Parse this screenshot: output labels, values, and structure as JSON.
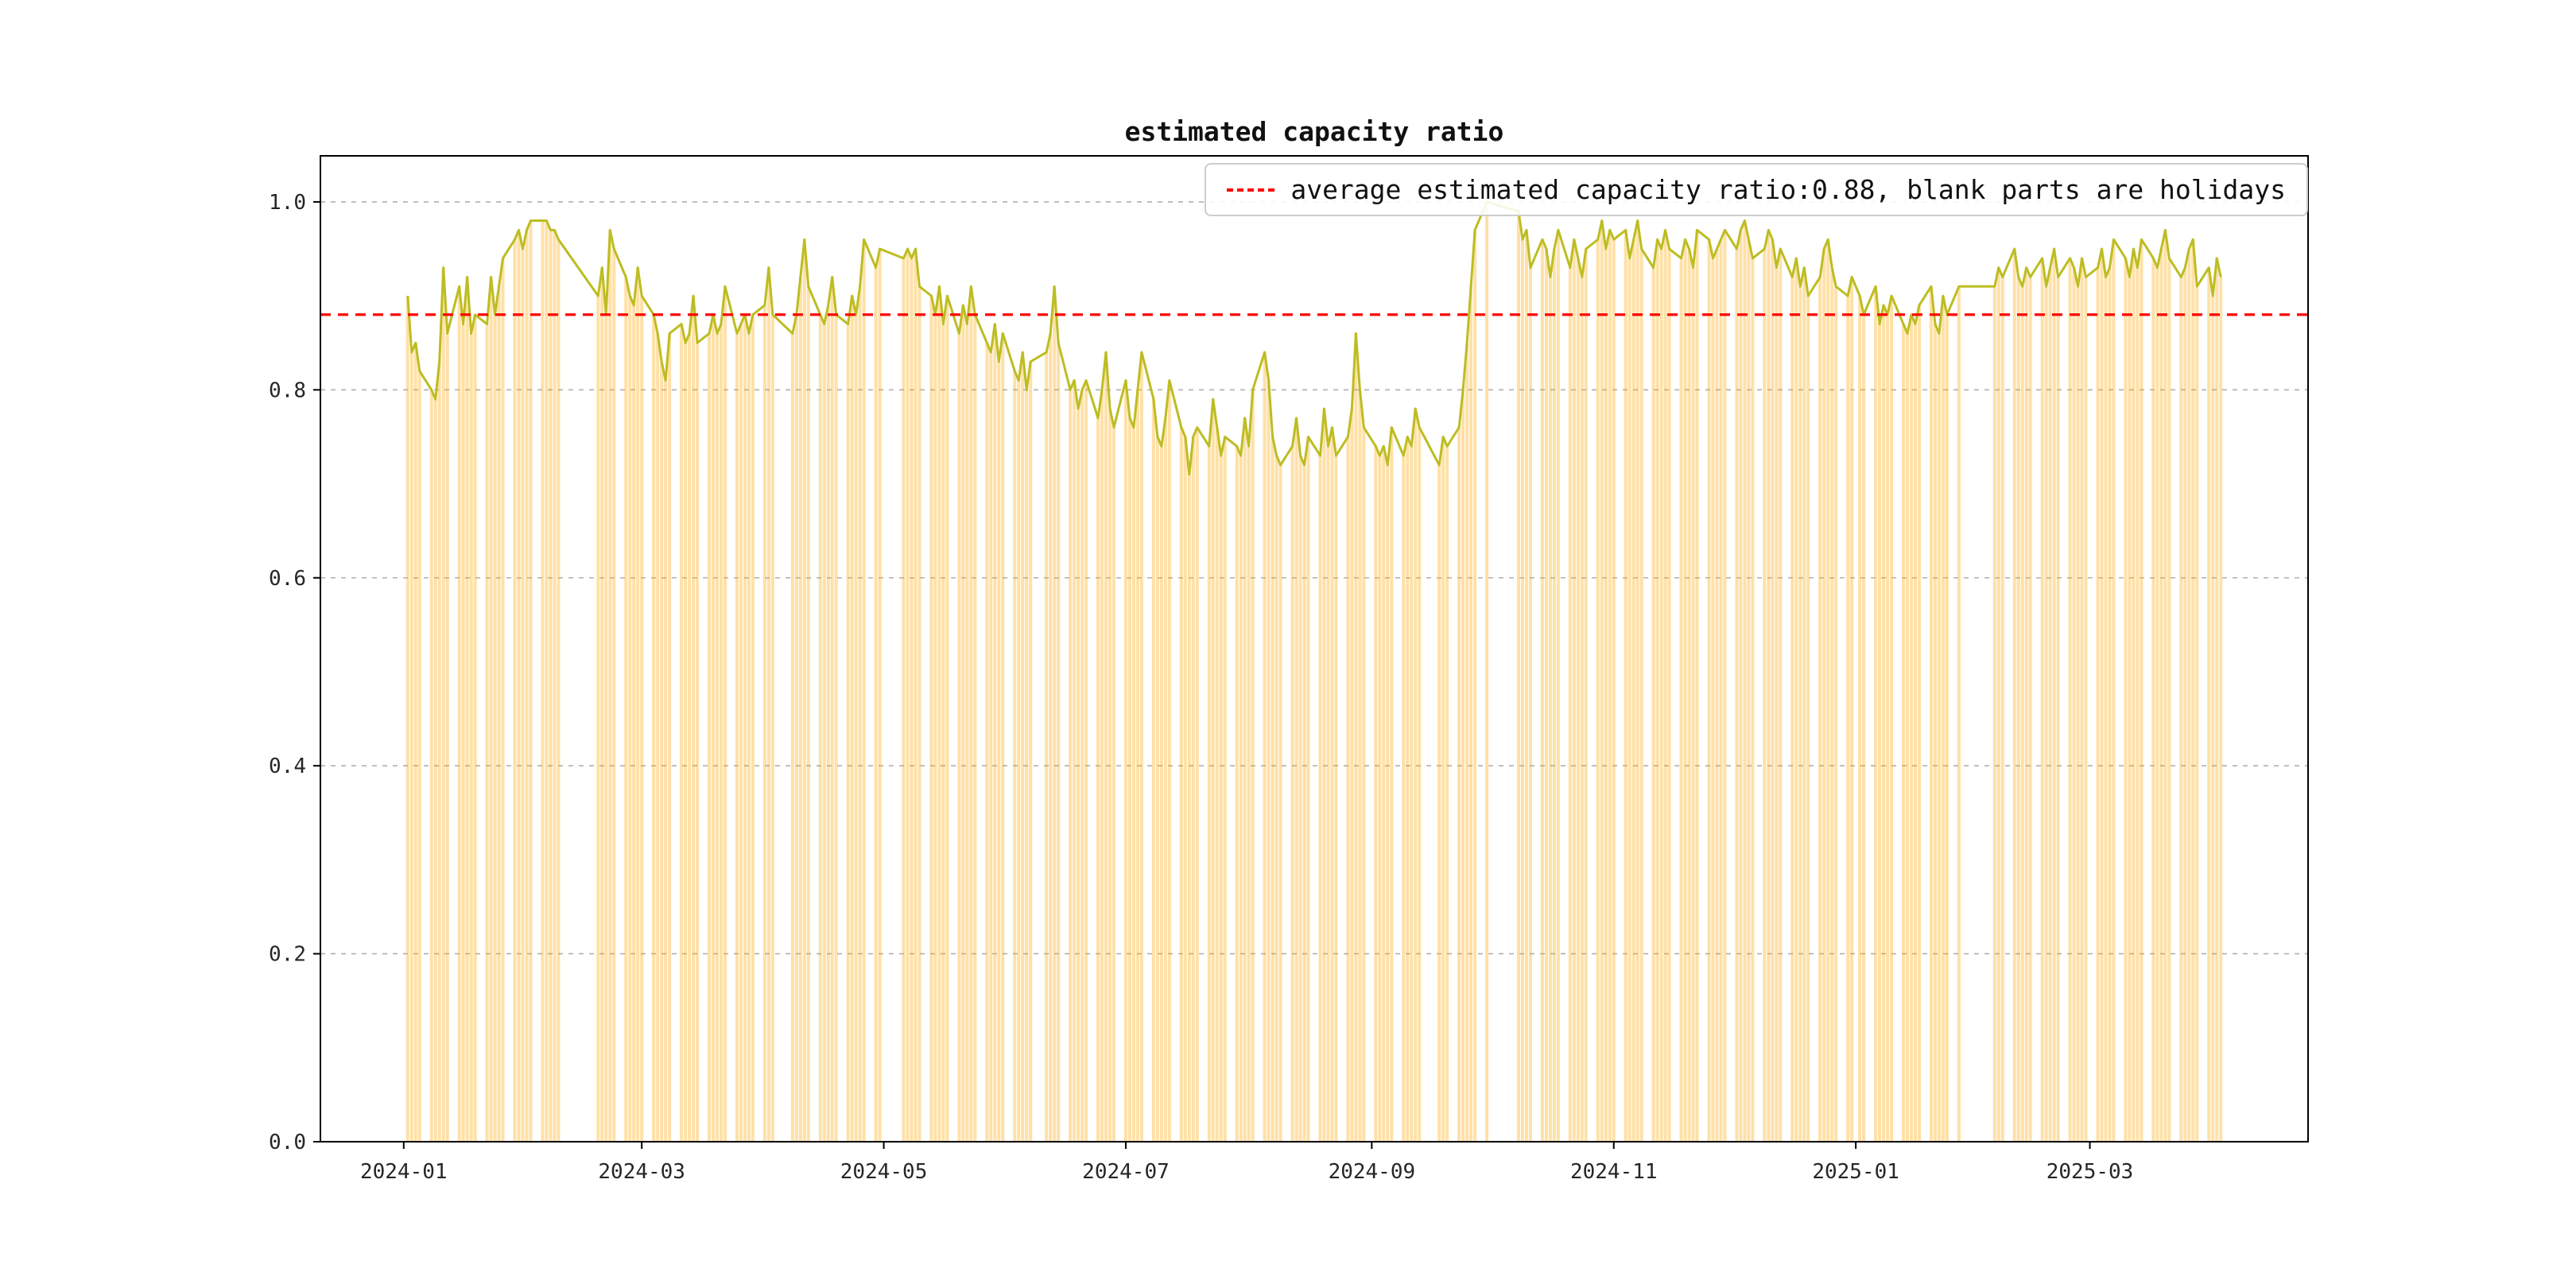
{
  "figure": {
    "title": "estimated capacity ratio"
  },
  "chart_data": {
    "type": "line",
    "title": "estimated capacity ratio",
    "legend_label": "average estimated capacity ratio:0.88, blank parts are holidays",
    "average": 0.88,
    "x_start_date": "2024-01-01",
    "x_axis_note": "day offsets are days since 2024-01-01; blank gaps are weekends/holidays",
    "xlim_days": [
      -21,
      480
    ],
    "ylim": [
      0,
      1.049
    ],
    "yticks": [
      0.0,
      0.2,
      0.4,
      0.6,
      0.8,
      1.0
    ],
    "xticks": [
      {
        "label": "2024-01",
        "day": 0
      },
      {
        "label": "2024-03",
        "day": 60
      },
      {
        "label": "2024-05",
        "day": 121
      },
      {
        "label": "2024-07",
        "day": 182
      },
      {
        "label": "2024-09",
        "day": 244
      },
      {
        "label": "2024-11",
        "day": 305
      },
      {
        "label": "2025-01",
        "day": 366
      },
      {
        "label": "2025-03",
        "day": 425
      }
    ],
    "colors": {
      "line": "#bcbd22",
      "bar": "rgba(255,166,0,0.35)",
      "average": "#ff0000",
      "grid": "#b0b0b0",
      "spine": "#000000"
    },
    "series_runs": [
      {
        "s": 1,
        "v": [
          0.9,
          0.84,
          0.85,
          0.82
        ]
      },
      {
        "s": 7,
        "v": [
          0.8,
          0.79,
          0.83,
          0.93,
          0.86
        ]
      },
      {
        "s": 14,
        "v": [
          0.91,
          0.87,
          0.92,
          0.86,
          0.88
        ]
      },
      {
        "s": 21,
        "v": [
          0.87,
          0.92,
          0.88,
          0.91,
          0.94
        ]
      },
      {
        "s": 28,
        "v": [
          0.96,
          0.97,
          0.95,
          0.97,
          0.98
        ]
      },
      {
        "s": 35,
        "v": [
          0.98,
          0.98,
          0.97,
          0.97,
          0.96
        ]
      },
      {
        "s": 49,
        "v": [
          0.9,
          0.93,
          0.88,
          0.97,
          0.95
        ]
      },
      {
        "s": 56,
        "v": [
          0.92,
          0.9,
          0.89,
          0.93,
          0.9
        ]
      },
      {
        "s": 63,
        "v": [
          0.88,
          0.86,
          0.83,
          0.81,
          0.86
        ]
      },
      {
        "s": 70,
        "v": [
          0.87,
          0.85,
          0.86,
          0.9,
          0.85
        ]
      },
      {
        "s": 77,
        "v": [
          0.86,
          0.88,
          0.86,
          0.87,
          0.91
        ]
      },
      {
        "s": 84,
        "v": [
          0.86,
          0.87,
          0.88,
          0.86,
          0.88
        ]
      },
      {
        "s": 91,
        "v": [
          0.89,
          0.93,
          0.88
        ]
      },
      {
        "s": 98,
        "v": [
          0.86,
          0.88,
          0.92,
          0.96,
          0.91
        ]
      },
      {
        "s": 105,
        "v": [
          0.88,
          0.87,
          0.89,
          0.92,
          0.88
        ]
      },
      {
        "s": 112,
        "v": [
          0.87,
          0.9,
          0.88,
          0.91,
          0.96
        ]
      },
      {
        "s": 119,
        "v": [
          0.93,
          0.95
        ]
      },
      {
        "s": 126,
        "v": [
          0.94,
          0.95,
          0.94,
          0.95,
          0.91
        ]
      },
      {
        "s": 133,
        "v": [
          0.9,
          0.88,
          0.91,
          0.87,
          0.9
        ]
      },
      {
        "s": 140,
        "v": [
          0.86,
          0.89,
          0.87,
          0.91,
          0.88
        ]
      },
      {
        "s": 147,
        "v": [
          0.85,
          0.84,
          0.87,
          0.83,
          0.86
        ]
      },
      {
        "s": 154,
        "v": [
          0.82,
          0.81,
          0.84,
          0.8,
          0.83
        ]
      },
      {
        "s": 162,
        "v": [
          0.84,
          0.86,
          0.91,
          0.85
        ]
      },
      {
        "s": 168,
        "v": [
          0.8,
          0.81,
          0.78,
          0.8,
          0.81
        ]
      },
      {
        "s": 175,
        "v": [
          0.77,
          0.8,
          0.84,
          0.78,
          0.76
        ]
      },
      {
        "s": 182,
        "v": [
          0.81,
          0.77,
          0.76,
          0.8,
          0.84
        ]
      },
      {
        "s": 189,
        "v": [
          0.79,
          0.75,
          0.74,
          0.77,
          0.81
        ]
      },
      {
        "s": 196,
        "v": [
          0.76,
          0.75,
          0.71,
          0.75,
          0.76
        ]
      },
      {
        "s": 203,
        "v": [
          0.74,
          0.79,
          0.76,
          0.73,
          0.75
        ]
      },
      {
        "s": 210,
        "v": [
          0.74,
          0.73,
          0.77,
          0.74,
          0.8
        ]
      },
      {
        "s": 217,
        "v": [
          0.84,
          0.81,
          0.75,
          0.73,
          0.72
        ]
      },
      {
        "s": 224,
        "v": [
          0.74,
          0.77,
          0.73,
          0.72,
          0.75
        ]
      },
      {
        "s": 231,
        "v": [
          0.73,
          0.78,
          0.74,
          0.76,
          0.73
        ]
      },
      {
        "s": 238,
        "v": [
          0.75,
          0.78,
          0.86,
          0.8,
          0.76
        ]
      },
      {
        "s": 245,
        "v": [
          0.74,
          0.73,
          0.74,
          0.72,
          0.76
        ]
      },
      {
        "s": 252,
        "v": [
          0.73,
          0.75,
          0.74,
          0.78,
          0.76
        ]
      },
      {
        "s": 261,
        "v": [
          0.72,
          0.75,
          0.74
        ]
      },
      {
        "s": 266,
        "v": [
          0.76,
          0.8,
          0.85,
          0.91,
          0.97
        ]
      },
      {
        "s": 273,
        "v": [
          1.0
        ]
      },
      {
        "s": 281,
        "v": [
          0.99,
          0.96,
          0.97,
          0.93
        ]
      },
      {
        "s": 287,
        "v": [
          0.96,
          0.95,
          0.92,
          0.95,
          0.97
        ]
      },
      {
        "s": 294,
        "v": [
          0.93,
          0.96,
          0.94,
          0.92,
          0.95
        ]
      },
      {
        "s": 301,
        "v": [
          0.96,
          0.98,
          0.95,
          0.97,
          0.96
        ]
      },
      {
        "s": 308,
        "v": [
          0.97,
          0.94,
          0.96,
          0.98,
          0.95
        ]
      },
      {
        "s": 315,
        "v": [
          0.93,
          0.96,
          0.95,
          0.97,
          0.95
        ]
      },
      {
        "s": 322,
        "v": [
          0.94,
          0.96,
          0.95,
          0.93,
          0.97
        ]
      },
      {
        "s": 329,
        "v": [
          0.96,
          0.94,
          0.95,
          0.96,
          0.97
        ]
      },
      {
        "s": 336,
        "v": [
          0.95,
          0.97,
          0.98,
          0.96,
          0.94
        ]
      },
      {
        "s": 343,
        "v": [
          0.95,
          0.97,
          0.96,
          0.93,
          0.95
        ]
      },
      {
        "s": 350,
        "v": [
          0.92,
          0.94,
          0.91,
          0.93,
          0.9
        ]
      },
      {
        "s": 357,
        "v": [
          0.92,
          0.95,
          0.96,
          0.93,
          0.91
        ]
      },
      {
        "s": 364,
        "v": [
          0.9,
          0.92
        ]
      },
      {
        "s": 367,
        "v": [
          0.9,
          0.88
        ]
      },
      {
        "s": 371,
        "v": [
          0.91,
          0.87,
          0.89,
          0.88,
          0.9
        ]
      },
      {
        "s": 378,
        "v": [
          0.87,
          0.86,
          0.88,
          0.87,
          0.89
        ]
      },
      {
        "s": 385,
        "v": [
          0.91,
          0.87,
          0.86,
          0.9,
          0.88
        ]
      },
      {
        "s": 392,
        "v": [
          0.91
        ]
      },
      {
        "s": 401,
        "v": [
          0.91,
          0.93,
          0.92
        ]
      },
      {
        "s": 406,
        "v": [
          0.95,
          0.92,
          0.91,
          0.93,
          0.92
        ]
      },
      {
        "s": 413,
        "v": [
          0.94,
          0.91,
          0.93,
          0.95,
          0.92
        ]
      },
      {
        "s": 420,
        "v": [
          0.94,
          0.93,
          0.91,
          0.94,
          0.92
        ]
      },
      {
        "s": 427,
        "v": [
          0.93,
          0.95,
          0.92,
          0.93,
          0.96
        ]
      },
      {
        "s": 434,
        "v": [
          0.94,
          0.92,
          0.95,
          0.93,
          0.96
        ]
      },
      {
        "s": 441,
        "v": [
          0.94,
          0.93,
          0.95,
          0.97,
          0.94
        ]
      },
      {
        "s": 448,
        "v": [
          0.92,
          0.93,
          0.95,
          0.96,
          0.91
        ]
      },
      {
        "s": 455,
        "v": [
          0.93,
          0.9,
          0.94,
          0.92
        ]
      }
    ]
  }
}
